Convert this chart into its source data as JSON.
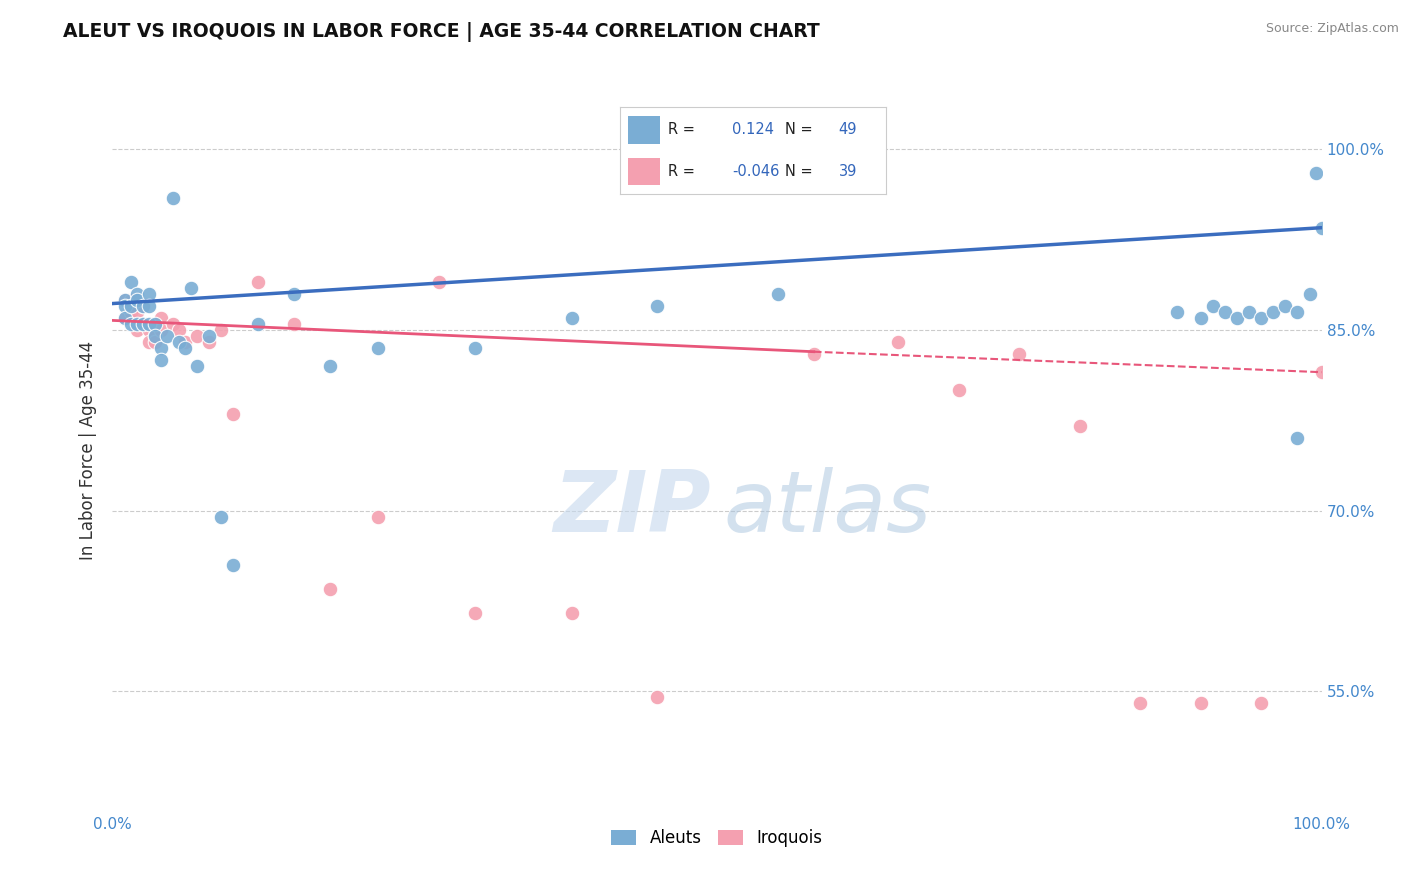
{
  "title": "ALEUT VS IROQUOIS IN LABOR FORCE | AGE 35-44 CORRELATION CHART",
  "source_text": "Source: ZipAtlas.com",
  "ylabel": "In Labor Force | Age 35-44",
  "xlim": [
    0.0,
    1.0
  ],
  "ylim": [
    0.45,
    1.05
  ],
  "yticks": [
    0.55,
    0.7,
    0.85,
    1.0
  ],
  "ytick_labels": [
    "55.0%",
    "70.0%",
    "85.0%",
    "100.0%"
  ],
  "xtick_labels": [
    "0.0%",
    "100.0%"
  ],
  "aleut_color": "#7aadd4",
  "iroquois_color": "#f4a0b0",
  "aleut_line_color": "#3b6dbf",
  "iroquois_line_color": "#e8567a",
  "background_color": "#ffffff",
  "grid_color": "#cccccc",
  "watermark_zip": "ZIP",
  "watermark_atlas": "atlas",
  "legend_R_aleut": "0.124",
  "legend_N_aleut": "49",
  "legend_R_iroquois": "-0.046",
  "legend_N_iroquois": "39",
  "aleut_line_y0": 0.872,
  "aleut_line_y1": 0.935,
  "iroquois_line_y0": 0.858,
  "iroquois_line_y_solid_end_x": 0.58,
  "iroquois_line_y_solid_end_y": 0.832,
  "iroquois_line_y1": 0.815,
  "aleut_x": [
    0.01,
    0.01,
    0.01,
    0.015,
    0.015,
    0.015,
    0.02,
    0.02,
    0.02,
    0.025,
    0.025,
    0.03,
    0.03,
    0.03,
    0.035,
    0.035,
    0.04,
    0.04,
    0.045,
    0.05,
    0.055,
    0.06,
    0.065,
    0.07,
    0.08,
    0.09,
    0.1,
    0.12,
    0.15,
    0.18,
    0.22,
    0.3,
    0.38,
    0.45,
    0.55,
    0.88,
    0.9,
    0.91,
    0.92,
    0.93,
    0.94,
    0.95,
    0.96,
    0.97,
    0.98,
    0.98,
    0.99,
    0.995,
    1.0
  ],
  "aleut_y": [
    0.875,
    0.87,
    0.86,
    0.89,
    0.87,
    0.855,
    0.88,
    0.875,
    0.855,
    0.87,
    0.855,
    0.88,
    0.87,
    0.855,
    0.855,
    0.845,
    0.835,
    0.825,
    0.845,
    0.96,
    0.84,
    0.835,
    0.885,
    0.82,
    0.845,
    0.695,
    0.655,
    0.855,
    0.88,
    0.82,
    0.835,
    0.835,
    0.86,
    0.87,
    0.88,
    0.865,
    0.86,
    0.87,
    0.865,
    0.86,
    0.865,
    0.86,
    0.865,
    0.87,
    0.865,
    0.76,
    0.88,
    0.98,
    0.935
  ],
  "iroquois_x": [
    0.01,
    0.01,
    0.015,
    0.015,
    0.02,
    0.02,
    0.02,
    0.025,
    0.025,
    0.03,
    0.03,
    0.035,
    0.035,
    0.04,
    0.04,
    0.05,
    0.055,
    0.06,
    0.07,
    0.08,
    0.09,
    0.1,
    0.12,
    0.15,
    0.18,
    0.22,
    0.27,
    0.3,
    0.38,
    0.45,
    0.58,
    0.65,
    0.7,
    0.75,
    0.8,
    0.85,
    0.9,
    0.95,
    1.0
  ],
  "iroquois_y": [
    0.875,
    0.86,
    0.875,
    0.865,
    0.87,
    0.865,
    0.85,
    0.87,
    0.855,
    0.85,
    0.84,
    0.845,
    0.84,
    0.86,
    0.85,
    0.855,
    0.85,
    0.84,
    0.845,
    0.84,
    0.85,
    0.78,
    0.89,
    0.855,
    0.635,
    0.695,
    0.89,
    0.615,
    0.615,
    0.545,
    0.83,
    0.84,
    0.8,
    0.83,
    0.77,
    0.54,
    0.54,
    0.54,
    0.815
  ]
}
